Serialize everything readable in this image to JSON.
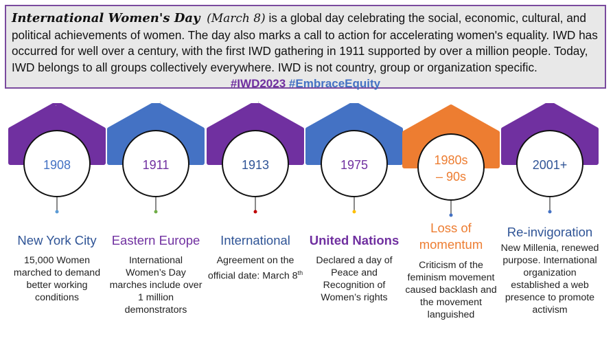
{
  "intro": {
    "name": "International Women's Day",
    "date": "(March 8)",
    "text": " is a global day celebrating the social, economic, cultural, and political achievements of women. The day also marks a call to action for accelerating women's equality. IWD has occurred for well over a century, with the first IWD gathering in 1911 supported by over a million people. Today, IWD belongs to all groups collectively everywhere. IWD is not country, group or organization specific.",
    "tag1": "#IWD2023",
    "tag2": "#EmbraceEquity"
  },
  "colors": {
    "purple": "#7030a0",
    "blue": "#4472c4",
    "orange": "#ed7d31",
    "box_border": "#7a4a9e",
    "box_fill": "#e8e8e8",
    "dark_blue_text": "#2f5496"
  },
  "milestones": [
    {
      "year": "1908",
      "shape_color": "#7030a0",
      "year_color": "#4472c4",
      "dot_color": "#5b9bd5",
      "title": "New York City",
      "title_color": "#2f5496",
      "title_bold": false,
      "desc": "15,000 Women marched to demand better working conditions",
      "desc_sup": ""
    },
    {
      "year": "1911",
      "shape_color": "#4472c4",
      "year_color": "#7030a0",
      "dot_color": "#70ad47",
      "title": "Eastern Europe",
      "title_color": "#7030a0",
      "title_bold": false,
      "desc": "International Women’s Day marches include over 1 million demonstrators",
      "desc_sup": ""
    },
    {
      "year": "1913",
      "shape_color": "#7030a0",
      "year_color": "#2f5496",
      "dot_color": "#c00000",
      "title": "International",
      "title_color": "#2f5496",
      "title_bold": false,
      "desc": "Agreement on the official date: March 8",
      "desc_sup": "th"
    },
    {
      "year": "1975",
      "shape_color": "#4472c4",
      "year_color": "#7030a0",
      "dot_color": "#ffc000",
      "title": "United Nations",
      "title_color": "#7030a0",
      "title_bold": true,
      "desc": "Declared a day of Peace and Recognition of Women’s rights",
      "desc_sup": ""
    },
    {
      "year": "1980s – 90s",
      "shape_color": "#ed7d31",
      "year_color": "#ed7d31",
      "dot_color": "#4472c4",
      "title": "Loss of momentum",
      "title_color": "#ed7d31",
      "title_bold": false,
      "desc": "Criticism of the feminism movement caused backlash and the movement languished",
      "desc_sup": ""
    },
    {
      "year": "2001+",
      "shape_color": "#7030a0",
      "year_color": "#2f5496",
      "dot_color": "#4472c4",
      "title": "Re-invigoration",
      "title_color": "#2f5496",
      "title_bold": false,
      "desc": "New Millenia, renewed purpose. International organization established a web presence to promote activism",
      "desc_sup": ""
    }
  ]
}
